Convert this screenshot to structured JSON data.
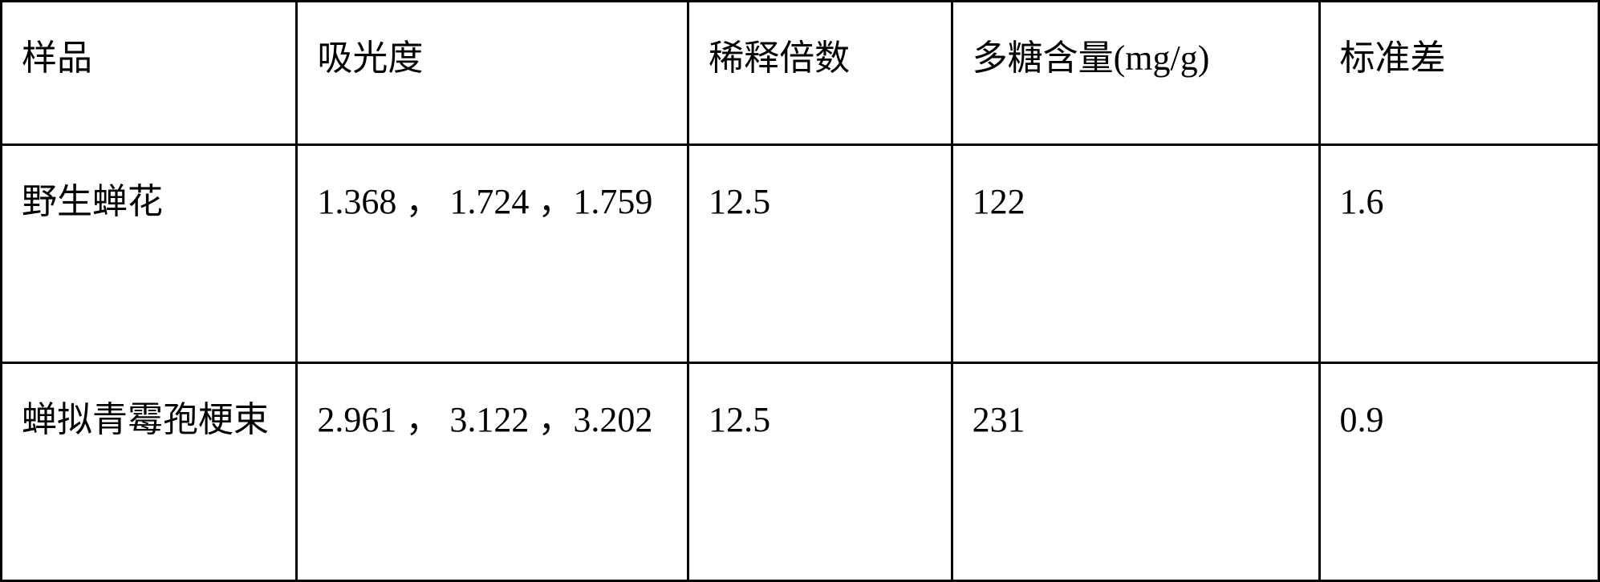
{
  "table": {
    "columns": [
      {
        "label": "样品"
      },
      {
        "label": "吸光度"
      },
      {
        "label": "稀释倍数"
      },
      {
        "label": "多糖含量(mg/g)"
      },
      {
        "label": "标准差"
      }
    ],
    "rows": [
      {
        "sample": "野生蝉花",
        "absorbance": "1.368 ， 1.724 ，1.759",
        "dilution": "12.5",
        "content": "122",
        "stddev": "1.6"
      },
      {
        "sample": "蝉拟青霉孢梗束",
        "absorbance": "2.961 ， 3.122 ，3.202",
        "dilution": "12.5",
        "content": "231",
        "stddev": "0.9"
      }
    ],
    "border_color": "#000000",
    "background_color": "#ffffff",
    "text_color": "#000000",
    "font_size_pt": 33,
    "col_widths_pct": [
      18.5,
      24.5,
      16.5,
      23,
      17.5
    ]
  }
}
